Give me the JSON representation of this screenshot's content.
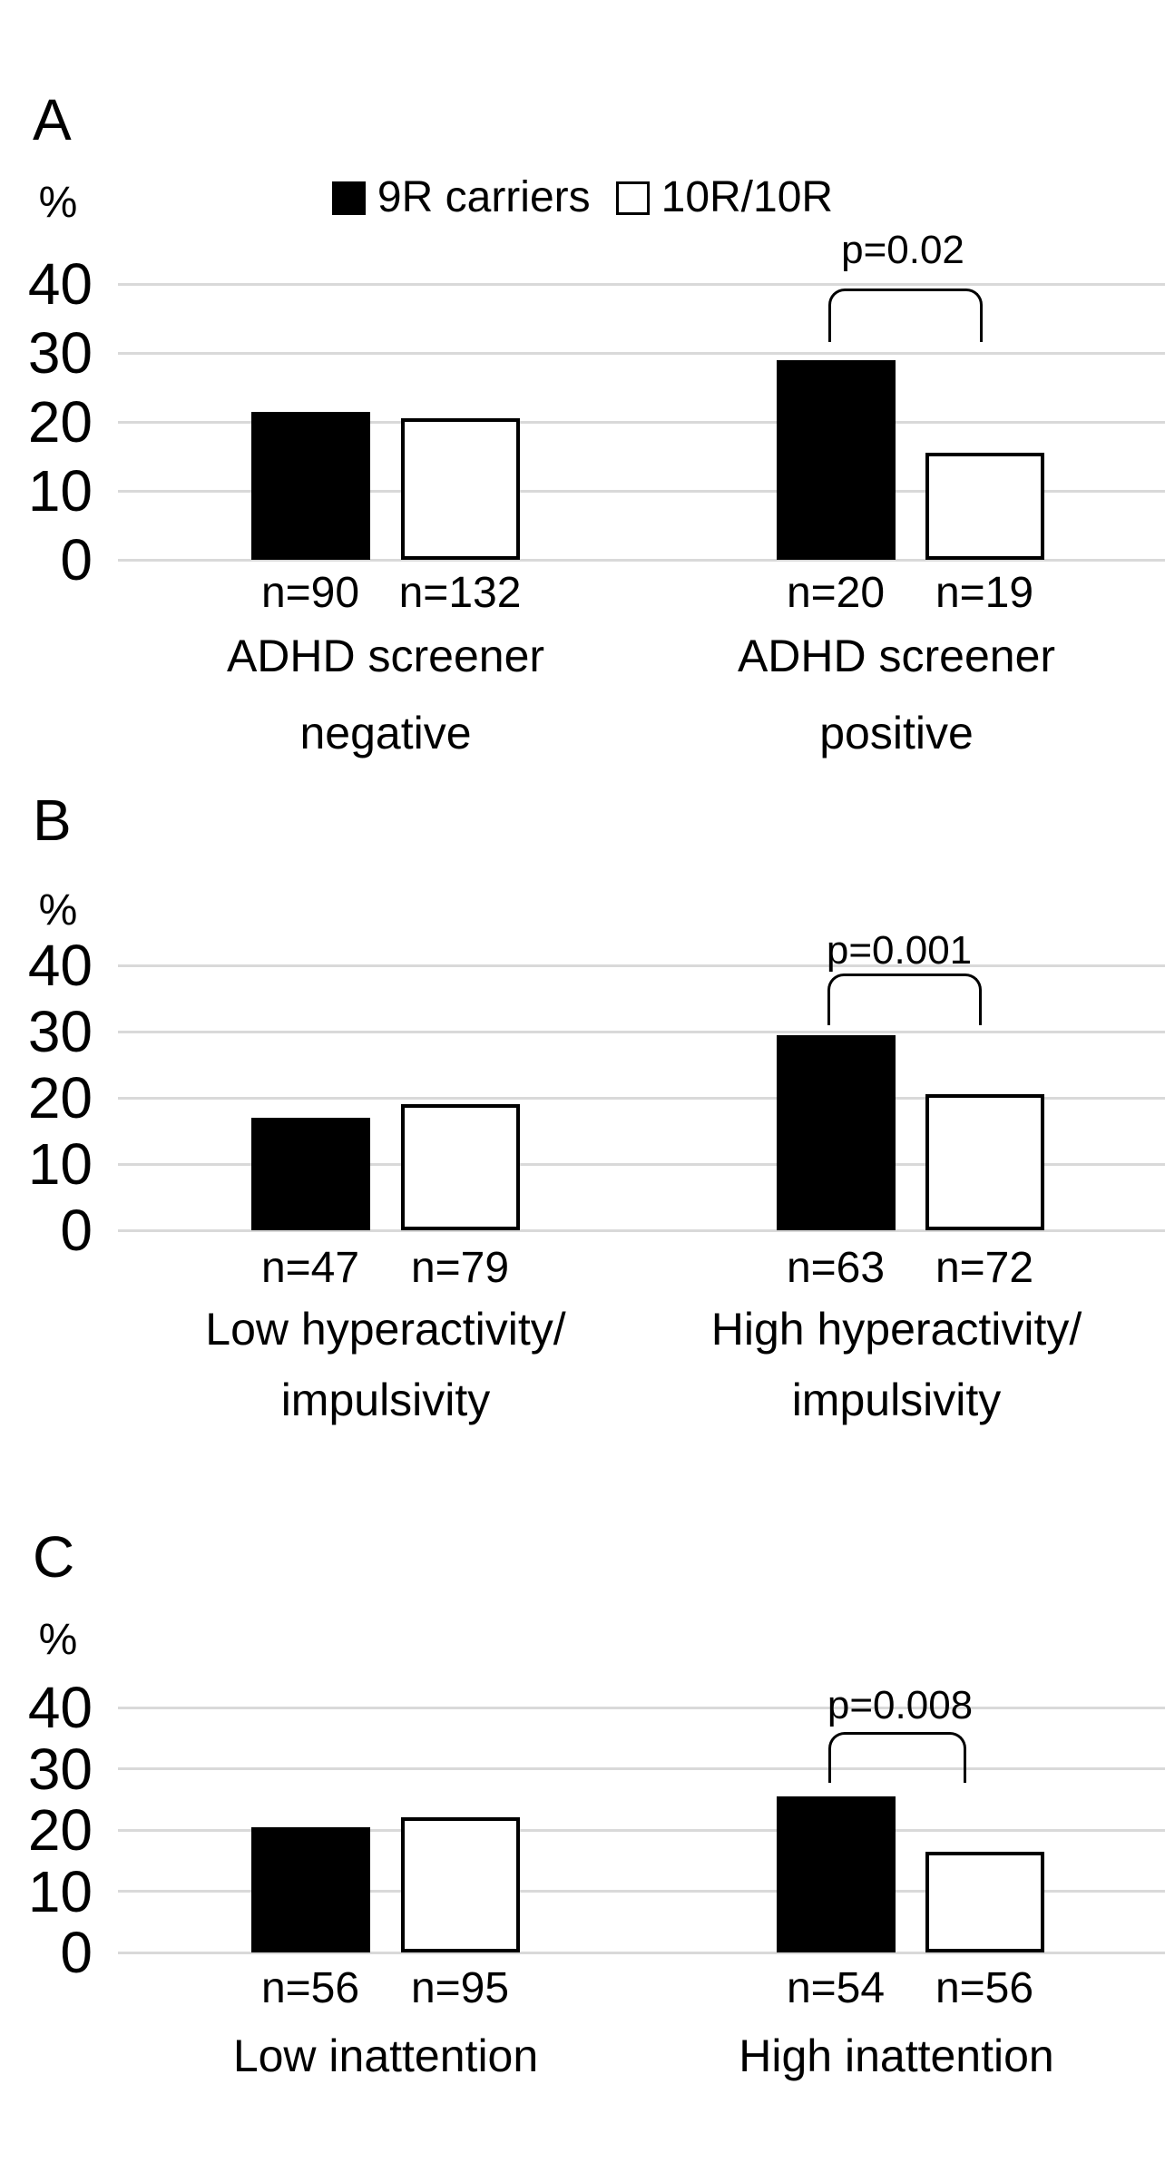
{
  "figure": {
    "legend": {
      "items": [
        {
          "label": "9R carriers",
          "swatch": "filled-black-square-icon"
        },
        {
          "label": "10R/10R",
          "swatch": "outlined-white-square-icon"
        }
      ]
    }
  },
  "colors": {
    "bar_filled": "#000000",
    "bar_outlined_fill": "#ffffff",
    "bar_border": "#000000",
    "gridline": "#d9d9d9",
    "text": "#000000",
    "background": "#ffffff"
  },
  "chart_data": [
    {
      "type": "bar",
      "panel": "A",
      "ylabel": "%",
      "ylim": [
        0,
        45
      ],
      "yticks": [
        0,
        10,
        20,
        30,
        40
      ],
      "grid": true,
      "legend_position": "top-center",
      "categories": [
        "ADHD screener negative",
        "ADHD screener positive"
      ],
      "category_label_lines": [
        [
          "ADHD screener",
          "negative"
        ],
        [
          "ADHD screener",
          "positive"
        ]
      ],
      "series": [
        {
          "name": "9R carriers",
          "values": [
            21.5,
            29
          ]
        },
        {
          "name": "10R/10R",
          "values": [
            20.5,
            15.5
          ]
        }
      ],
      "n_labels": [
        [
          "n=90",
          "n=132"
        ],
        [
          "n=20",
          "n=19"
        ]
      ],
      "annotation": {
        "text": "p=0.02",
        "category": "ADHD screener positive"
      }
    },
    {
      "type": "bar",
      "panel": "B",
      "ylabel": "%",
      "ylim": [
        0,
        45
      ],
      "yticks": [
        0,
        10,
        20,
        30,
        40
      ],
      "grid": true,
      "categories": [
        "Low hyperactivity/ impulsivity",
        "High hyperactivity/ impulsivity"
      ],
      "category_label_lines": [
        [
          "Low hyperactivity/",
          "impulsivity"
        ],
        [
          "High hyperactivity/",
          "impulsivity"
        ]
      ],
      "series": [
        {
          "name": "9R carriers",
          "values": [
            17,
            29.5
          ]
        },
        {
          "name": "10R/10R",
          "values": [
            19,
            20.5
          ]
        }
      ],
      "n_labels": [
        [
          "n=47",
          "n=79"
        ],
        [
          "n=63",
          "n=72"
        ]
      ],
      "annotation": {
        "text": "p=0.001",
        "category": "High hyperactivity/ impulsivity"
      }
    },
    {
      "type": "bar",
      "panel": "C",
      "ylabel": "%",
      "ylim": [
        0,
        45
      ],
      "yticks": [
        0,
        10,
        20,
        30,
        40
      ],
      "grid": true,
      "categories": [
        "Low inattention",
        "High inattention"
      ],
      "category_label_lines": [
        [
          "Low inattention"
        ],
        [
          "High inattention"
        ]
      ],
      "series": [
        {
          "name": "9R carriers",
          "values": [
            20.5,
            25.5
          ]
        },
        {
          "name": "10R/10R",
          "values": [
            22,
            16.5
          ]
        }
      ],
      "n_labels": [
        [
          "n=56",
          "n=95"
        ],
        [
          "n=54",
          "n=56"
        ]
      ],
      "annotation": {
        "text": "p=0.008",
        "category": "High inattention"
      }
    }
  ]
}
